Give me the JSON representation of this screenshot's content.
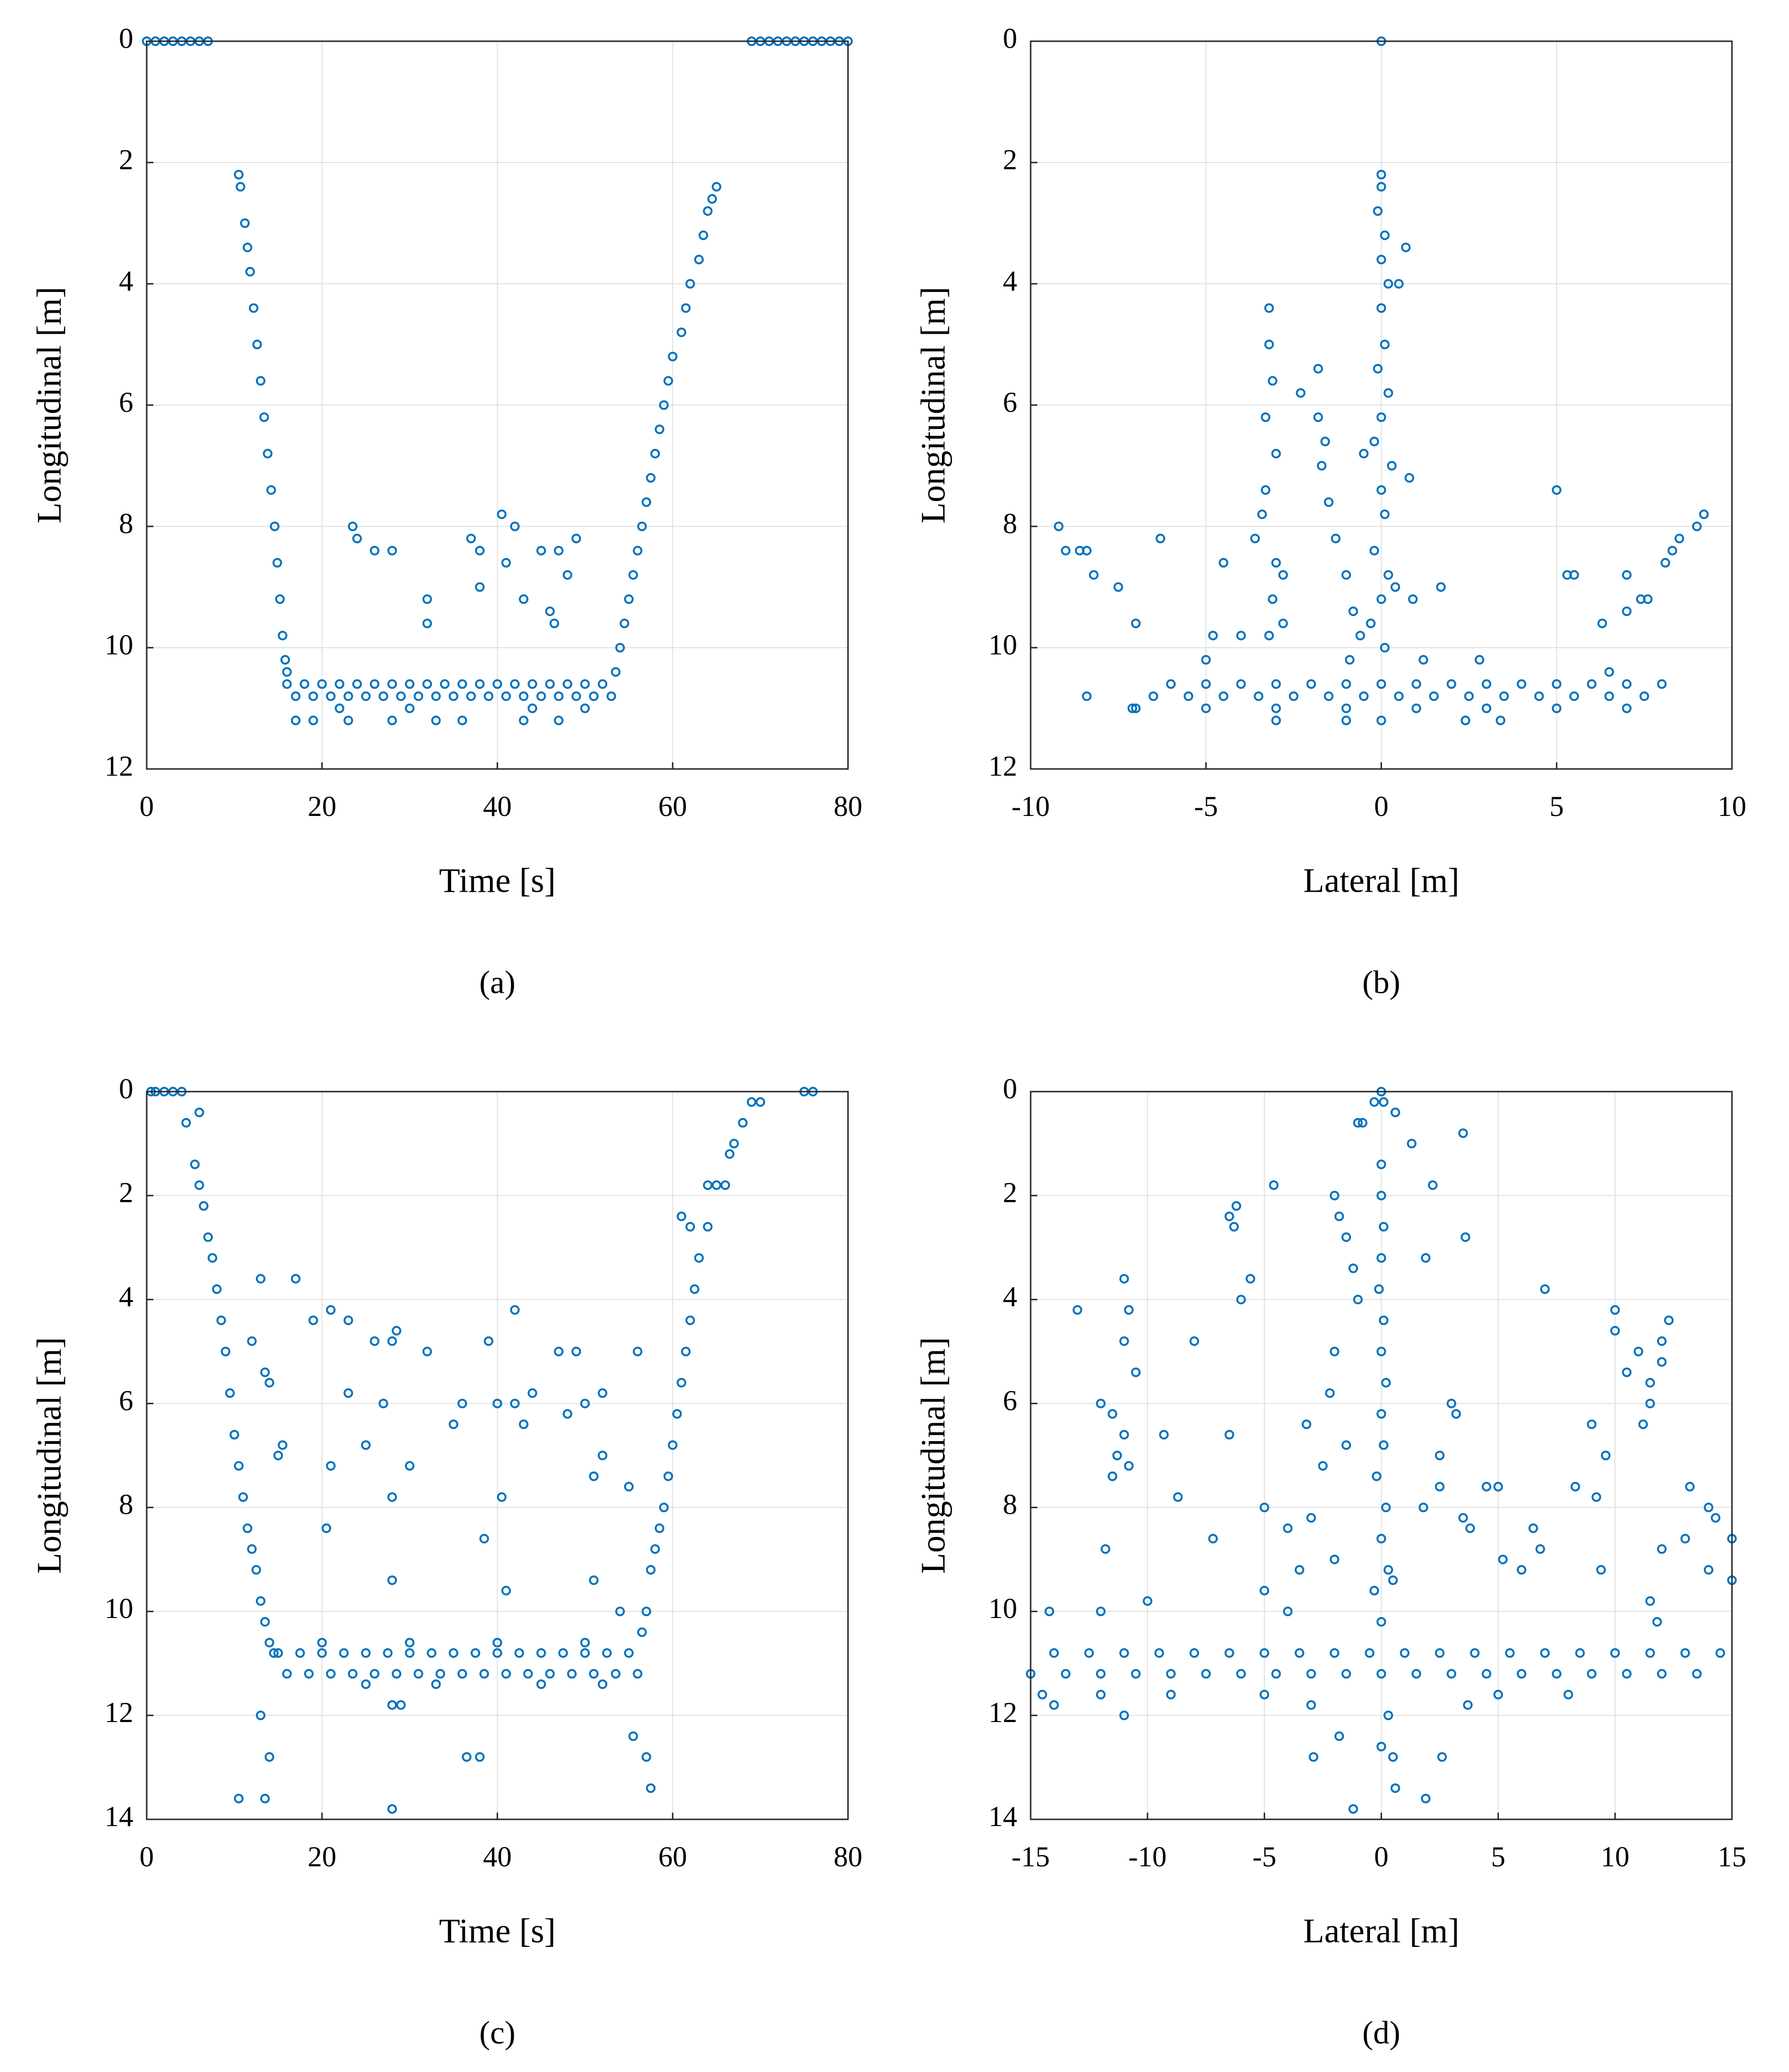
{
  "chart_data": [
    {
      "type": "scatter",
      "caption": "(a)",
      "x_label": "Time [s]",
      "y_label": "Longitudinal [m]",
      "color": "#0072bd",
      "grid": true,
      "y_inverted": true,
      "xlim": [
        0,
        80
      ],
      "ylim": [
        0,
        12
      ],
      "xticks": [
        0,
        20,
        40,
        60,
        80
      ],
      "yticks": [
        0,
        2,
        4,
        6,
        8,
        10,
        12
      ],
      "x": [
        0,
        1,
        2,
        3,
        4,
        5,
        6,
        7,
        69,
        70,
        71,
        72,
        73,
        74,
        75,
        76,
        77,
        78,
        79,
        80,
        10.5,
        10.7,
        11.2,
        11.5,
        11.8,
        12.2,
        12.6,
        13,
        13.4,
        13.8,
        14.2,
        14.6,
        14.9,
        15.2,
        15.5,
        15.8,
        16,
        16,
        18,
        20,
        22,
        24,
        26,
        28,
        30,
        32,
        34,
        36,
        38,
        40,
        42,
        44,
        46,
        48,
        50,
        52,
        17,
        19,
        21,
        23,
        25,
        27,
        29,
        31,
        33,
        35,
        37,
        39,
        41,
        43,
        45,
        47,
        49,
        51,
        53,
        17,
        19,
        23,
        28,
        33,
        36,
        43,
        47,
        22,
        30,
        44,
        50,
        23.5,
        24,
        26,
        28,
        32,
        32,
        37,
        38,
        38,
        40.5,
        41,
        42,
        43,
        45,
        46,
        46.5,
        47,
        48,
        49,
        53.5,
        54,
        54.5,
        55,
        55.5,
        56,
        56.5,
        57,
        57.5,
        58,
        58.5,
        59,
        59.5,
        60,
        61,
        61.5,
        62,
        63,
        63.5,
        64,
        64.5,
        65
      ],
      "y": [
        0,
        0,
        0,
        0,
        0,
        0,
        0,
        0,
        0,
        0,
        0,
        0,
        0,
        0,
        0,
        0,
        0,
        0,
        0,
        0,
        2.2,
        2.4,
        3,
        3.4,
        3.8,
        4.4,
        5,
        5.6,
        6.2,
        6.8,
        7.4,
        8,
        8.6,
        9.2,
        9.8,
        10.2,
        10.4,
        10.6,
        10.6,
        10.6,
        10.6,
        10.6,
        10.6,
        10.6,
        10.6,
        10.6,
        10.6,
        10.6,
        10.6,
        10.6,
        10.6,
        10.6,
        10.6,
        10.6,
        10.6,
        10.6,
        10.8,
        10.8,
        10.8,
        10.8,
        10.8,
        10.8,
        10.8,
        10.8,
        10.8,
        10.8,
        10.8,
        10.8,
        10.8,
        10.8,
        10.8,
        10.8,
        10.8,
        10.8,
        10.8,
        11.2,
        11.2,
        11.2,
        11.2,
        11.2,
        11.2,
        11.2,
        11.2,
        11,
        11,
        11,
        11,
        8,
        8.2,
        8.4,
        8.4,
        9.2,
        9.6,
        8.2,
        8.4,
        9,
        7.8,
        8.6,
        8,
        9.2,
        8.4,
        9.4,
        9.6,
        8.4,
        8.8,
        8.2,
        10.4,
        10,
        9.6,
        9.2,
        8.8,
        8.4,
        8,
        7.6,
        7.2,
        6.8,
        6.4,
        6,
        5.6,
        5.2,
        4.8,
        4.4,
        4,
        3.6,
        3.2,
        2.8,
        2.6,
        2.4
      ]
    },
    {
      "type": "scatter",
      "caption": "(b)",
      "x_label": "Lateral [m]",
      "y_label": "Longitudinal [m]",
      "color": "#0072bd",
      "grid": true,
      "y_inverted": true,
      "xlim": [
        -10,
        10
      ],
      "ylim": [
        0,
        12
      ],
      "xticks": [
        -10,
        -5,
        0,
        5,
        10
      ],
      "yticks": [
        0,
        2,
        4,
        6,
        8,
        10,
        12
      ],
      "x": [
        0,
        0,
        0,
        -0.1,
        0.1,
        0,
        0.2,
        0,
        0.1,
        -0.1,
        0.2,
        0,
        -0.2,
        0.3,
        0,
        0.1,
        -0.2,
        0.2,
        0,
        0.4,
        -0.3,
        0.1,
        0.7,
        0.5,
        0.8,
        -3.2,
        -3.2,
        -3.1,
        -3.3,
        -3,
        -3.3,
        -3.4,
        -3.6,
        -3,
        -3.1,
        -3.2,
        -2.8,
        -2.8,
        -1.8,
        -2.3,
        -1.8,
        -1.6,
        -1.7,
        -1.5,
        -1.3,
        -1,
        -0.8,
        -0.6,
        -0.9,
        -0.5,
        -9.2,
        -9,
        -8.6,
        -8.4,
        -8.2,
        -7.5,
        -7,
        -6.3,
        -8.4,
        -7.1,
        -4.5,
        -4,
        -5,
        -4.8,
        5,
        5.3,
        5.5,
        6.3,
        6.5,
        7,
        7,
        7.4,
        7.6,
        8.1,
        8.3,
        8.5,
        9,
        9.2,
        1.7,
        0.9,
        1.2,
        2.8,
        2.4,
        -6,
        -5,
        -4,
        -3,
        -2,
        -1,
        0,
        1,
        2,
        3,
        4,
        5,
        6,
        7,
        8,
        -6.5,
        -5.5,
        -4.5,
        -3.5,
        -2.5,
        -1.5,
        -0.5,
        0.5,
        1.5,
        2.5,
        3.5,
        4.5,
        5.5,
        6.5,
        7.5,
        -7,
        -5,
        -3,
        -1,
        1,
        3,
        5,
        7,
        -3,
        -1,
        0,
        3.4
      ],
      "y": [
        0,
        2.2,
        2.4,
        2.8,
        3.2,
        3.6,
        4,
        4.4,
        5,
        5.4,
        5.8,
        6.2,
        6.6,
        7,
        7.4,
        7.8,
        8.4,
        8.8,
        9.2,
        9,
        9.6,
        10,
        3.4,
        4,
        7.2,
        4.4,
        5,
        5.6,
        6.2,
        6.8,
        7.4,
        7.8,
        8.2,
        8.6,
        9.2,
        9.8,
        8.8,
        9.6,
        5.4,
        5.8,
        6.2,
        6.6,
        7,
        7.6,
        8.2,
        8.8,
        9.4,
        9.8,
        10.2,
        6.8,
        8,
        8.4,
        8.4,
        8.4,
        8.8,
        9,
        9.6,
        8.2,
        10.8,
        11,
        8.6,
        9.8,
        10.2,
        9.8,
        7.4,
        8.8,
        8.8,
        9.6,
        10.4,
        8.8,
        9.4,
        9.2,
        9.2,
        8.6,
        8.4,
        8.2,
        8,
        7.8,
        9,
        9.2,
        10.2,
        10.2,
        11.2,
        10.6,
        10.6,
        10.6,
        10.6,
        10.6,
        10.6,
        10.6,
        10.6,
        10.6,
        10.6,
        10.6,
        10.6,
        10.6,
        10.6,
        10.6,
        10.8,
        10.8,
        10.8,
        10.8,
        10.8,
        10.8,
        10.8,
        10.8,
        10.8,
        10.8,
        10.8,
        10.8,
        10.8,
        10.8,
        10.8,
        11,
        11,
        11,
        11,
        11,
        11,
        11,
        11,
        11.2,
        11.2,
        11.2,
        11.2
      ]
    },
    {
      "type": "scatter",
      "caption": "(c)",
      "x_label": "Time [s]",
      "y_label": "Longitudinal [m]",
      "color": "#0072bd",
      "grid": true,
      "y_inverted": true,
      "xlim": [
        0,
        80
      ],
      "ylim": [
        0,
        14
      ],
      "xticks": [
        0,
        20,
        40,
        60,
        80
      ],
      "yticks": [
        0,
        2,
        4,
        6,
        8,
        10,
        12,
        14
      ],
      "x": [
        0.5,
        1,
        2,
        3,
        4,
        75,
        76,
        4.5,
        6,
        5.5,
        6,
        6.5,
        7,
        7.5,
        8,
        8.5,
        9,
        9.5,
        10,
        10.5,
        11,
        11.5,
        12,
        12.5,
        13,
        13.5,
        14,
        14.5,
        15,
        17.5,
        20,
        22.5,
        25,
        27.5,
        30,
        32.5,
        35,
        37.5,
        40,
        42.5,
        45,
        47.5,
        50,
        52.5,
        55,
        16,
        18.5,
        21,
        23.5,
        26,
        28.5,
        31,
        33.5,
        36,
        38.5,
        41,
        43.5,
        46,
        48.5,
        51,
        53.5,
        56,
        20,
        30,
        40,
        50,
        25,
        33,
        45,
        52,
        28,
        29,
        10.5,
        13.5,
        14,
        13,
        12,
        13,
        13.5,
        14,
        15,
        15.5,
        17,
        19,
        20.5,
        21,
        21,
        23,
        23,
        25,
        26,
        27,
        28,
        28,
        28,
        28.5,
        30,
        28,
        32,
        35,
        36,
        36.5,
        38,
        38.5,
        39,
        40,
        40.5,
        41,
        42,
        42,
        43,
        44,
        47,
        48,
        49,
        50,
        51,
        51,
        52,
        52,
        54,
        55,
        56,
        55.5,
        57,
        57.5,
        56.5,
        57,
        57.5,
        58,
        58.5,
        59,
        59.5,
        60,
        60.5,
        61,
        61.5,
        62,
        62.5,
        63,
        64,
        65,
        66,
        66.5,
        67,
        68,
        69,
        70,
        61,
        62,
        64
      ],
      "y": [
        0,
        0,
        0,
        0,
        0,
        0,
        0,
        0.6,
        0.4,
        1.4,
        1.8,
        2.2,
        2.8,
        3.2,
        3.8,
        4.4,
        5,
        5.8,
        6.6,
        7.2,
        7.8,
        8.4,
        8.8,
        9.2,
        9.8,
        10.2,
        10.6,
        10.8,
        10.8,
        10.8,
        10.8,
        10.8,
        10.8,
        10.8,
        10.8,
        10.8,
        10.8,
        10.8,
        10.8,
        10.8,
        10.8,
        10.8,
        10.8,
        10.8,
        10.8,
        11.2,
        11.2,
        11.2,
        11.2,
        11.2,
        11.2,
        11.2,
        11.2,
        11.2,
        11.2,
        11.2,
        11.2,
        11.2,
        11.2,
        11.2,
        11.2,
        11.2,
        10.6,
        10.6,
        10.6,
        10.6,
        11.4,
        11.4,
        11.4,
        11.4,
        11.8,
        11.8,
        13.6,
        13.6,
        12.8,
        12,
        4.8,
        3.6,
        5.4,
        5.6,
        7,
        6.8,
        3.6,
        4.4,
        8.4,
        4.2,
        7.2,
        4.4,
        5.8,
        6.8,
        4.8,
        6,
        4.8,
        7.8,
        9.4,
        4.6,
        7.2,
        13.8,
        5,
        6.4,
        6,
        12.8,
        12.8,
        8.6,
        4.8,
        6,
        7.8,
        9.6,
        6,
        4.2,
        6.4,
        5.8,
        5,
        6.2,
        5,
        6,
        7.4,
        9.4,
        5.8,
        7,
        10,
        7.6,
        5,
        12.4,
        12.8,
        13.4,
        10.4,
        10,
        9.2,
        8.8,
        8.4,
        8,
        7.4,
        6.8,
        6.2,
        5.6,
        5,
        4.4,
        3.8,
        3.2,
        2.6,
        1.8,
        1.8,
        1.2,
        1,
        0.6,
        0.2,
        0.2,
        2.4,
        2.6,
        1.8
      ]
    },
    {
      "type": "scatter",
      "caption": "(d)",
      "x_label": "Lateral [m]",
      "y_label": "Longitudinal [m]",
      "color": "#0072bd",
      "grid": true,
      "y_inverted": true,
      "xlim": [
        -15,
        15
      ],
      "ylim": [
        0,
        14
      ],
      "xticks": [
        -15,
        -10,
        -5,
        0,
        5,
        10,
        15
      ],
      "yticks": [
        0,
        2,
        4,
        6,
        8,
        10,
        12,
        14
      ],
      "x": [
        0,
        0.1,
        -0.3,
        -1,
        -0.8,
        0,
        0,
        0.1,
        0,
        -0.1,
        0.1,
        0,
        0.2,
        0,
        0.1,
        -0.2,
        0.2,
        0,
        0.3,
        -0.3,
        0,
        0.5,
        1.3,
        0.6,
        2.2,
        1.9,
        3.5,
        3.6,
        -1.2,
        0.6,
        1.9,
        2.6,
        -1.8,
        -2.9,
        0,
        0.5,
        0.3,
        -2,
        -1.8,
        -1.5,
        -1.2,
        -1,
        -2,
        -2.2,
        -13,
        -11,
        -10.8,
        -11,
        -10.5,
        -12,
        -11.5,
        -11,
        -11.3,
        -10.8,
        -11.5,
        -9.3,
        -8.7,
        -10,
        -11.8,
        -12,
        -7.2,
        -6.5,
        -6.2,
        -6.3,
        -5.6,
        -4.6,
        -6,
        -6.5,
        -8,
        -14.2,
        -11,
        -5,
        -4,
        -3,
        -3.5,
        -5,
        -4,
        -2,
        -2.5,
        -1.5,
        -3.2,
        7,
        10,
        10,
        10.5,
        11,
        11.5,
        11.2,
        12,
        12.3,
        12,
        11.5,
        9,
        8.3,
        9.6,
        9.2,
        9.4,
        11.5,
        12,
        11.8,
        13.2,
        13,
        14,
        14.3,
        14,
        15,
        15,
        3,
        3.2,
        2.5,
        4.5,
        5,
        3.5,
        3.8,
        5.2,
        6,
        6.5,
        6.8,
        1.8,
        2.5,
        -14,
        -12.5,
        -11,
        -9.5,
        -8,
        -6.5,
        -5,
        -3.5,
        -2,
        -0.5,
        1,
        2.5,
        4,
        5.5,
        7,
        8.5,
        10,
        11.5,
        13,
        14.5,
        -15,
        -13.5,
        -12,
        -10.5,
        -9,
        -7.5,
        -6,
        -4.5,
        -3,
        -1.5,
        0,
        1.5,
        3,
        4.5,
        6,
        7.5,
        9,
        10.5,
        12,
        13.5,
        -14.5,
        -12,
        -9,
        -5,
        5,
        8,
        -14,
        -3,
        3.7
      ],
      "y": [
        0,
        0.2,
        0.2,
        0.6,
        0.6,
        1.4,
        2,
        2.6,
        3.2,
        3.8,
        4.4,
        5,
        5.6,
        6.2,
        6.8,
        7.4,
        8,
        8.6,
        9.2,
        9.6,
        10.2,
        9.4,
        1,
        0.4,
        1.8,
        3.2,
        0.8,
        2.8,
        13.8,
        13.4,
        13.6,
        12.8,
        12.4,
        12.8,
        12.6,
        12.8,
        12,
        2,
        2.4,
        2.8,
        3.4,
        4,
        5,
        5.8,
        4.2,
        3.6,
        4.2,
        4.8,
        5.4,
        6,
        6.2,
        6.6,
        7,
        7.2,
        7.4,
        6.6,
        7.8,
        9.8,
        8.8,
        10,
        8.6,
        2.4,
        2.2,
        2.6,
        3.6,
        1.8,
        4,
        6.6,
        4.8,
        10,
        12,
        8,
        8.4,
        8.2,
        9.2,
        9.6,
        10,
        9,
        7.2,
        6.8,
        6.4,
        3.8,
        4.2,
        4.6,
        5.4,
        5,
        6,
        6.4,
        5.2,
        4.4,
        4.8,
        5.6,
        6.4,
        7.6,
        7,
        7.8,
        9.2,
        9.8,
        8.8,
        10.2,
        7.6,
        8.6,
        8,
        8.2,
        9.2,
        8.6,
        9.4,
        6,
        6.2,
        7,
        7.6,
        7.6,
        8.2,
        8.4,
        9,
        9.2,
        8.4,
        8.8,
        8,
        7.6,
        10.8,
        10.8,
        10.8,
        10.8,
        10.8,
        10.8,
        10.8,
        10.8,
        10.8,
        10.8,
        10.8,
        10.8,
        10.8,
        10.8,
        10.8,
        10.8,
        10.8,
        10.8,
        10.8,
        10.8,
        11.2,
        11.2,
        11.2,
        11.2,
        11.2,
        11.2,
        11.2,
        11.2,
        11.2,
        11.2,
        11.2,
        11.2,
        11.2,
        11.2,
        11.2,
        11.2,
        11.2,
        11.2,
        11.2,
        11.2,
        11.6,
        11.6,
        11.6,
        11.6,
        11.6,
        11.6,
        11.8,
        11.8,
        11.8
      ]
    }
  ]
}
